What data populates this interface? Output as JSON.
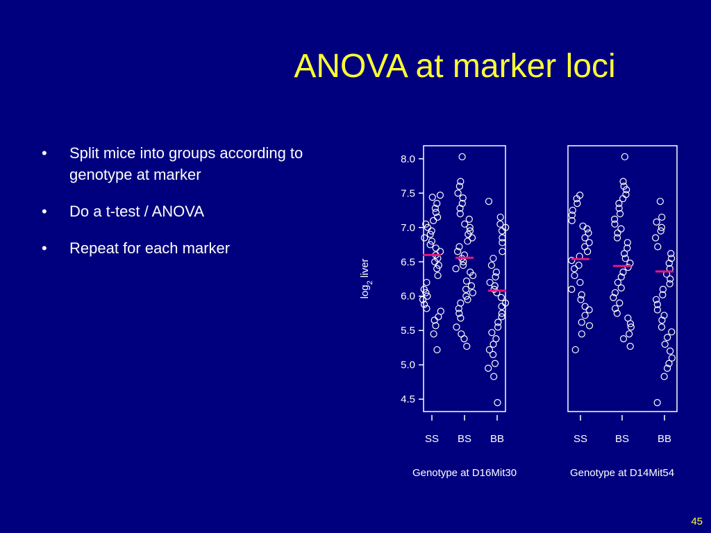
{
  "title": "ANOVA at marker loci",
  "bullets": [
    "Split mice into groups according to genotype at marker",
    "Do a t-test / ANOVA",
    "Repeat for each marker"
  ],
  "page_number": "45",
  "chart_data": [
    {
      "type": "strip",
      "ylabel": [
        "log",
        "2",
        " liver"
      ],
      "xlabel": "Genotype at D16Mit30",
      "categories": [
        "SS",
        "BS",
        "BB"
      ],
      "values": [
        [
          7.47,
          7.44,
          7.35,
          7.28,
          7.22,
          7.15,
          7.1,
          7.05,
          7.0,
          6.95,
          6.9,
          6.85,
          6.8,
          6.75,
          6.7,
          6.65,
          6.6,
          6.55,
          6.5,
          6.45,
          6.4,
          6.3,
          6.2,
          6.1,
          6.05,
          6.0,
          5.95,
          5.88,
          5.82,
          5.78,
          5.7,
          5.65,
          5.57,
          5.45,
          5.22
        ],
        [
          8.03,
          7.67,
          7.6,
          7.5,
          7.43,
          7.35,
          7.28,
          7.2,
          7.12,
          7.05,
          7.0,
          6.95,
          6.9,
          6.85,
          6.8,
          6.72,
          6.65,
          6.6,
          6.55,
          6.5,
          6.45,
          6.4,
          6.35,
          6.3,
          6.22,
          6.15,
          6.1,
          6.05,
          6.0,
          5.95,
          5.9,
          5.82,
          5.75,
          5.68,
          5.55,
          5.45,
          5.38,
          5.27
        ],
        [
          7.38,
          7.15,
          7.05,
          7.0,
          6.95,
          6.85,
          6.78,
          6.65,
          6.55,
          6.45,
          6.35,
          6.28,
          6.2,
          6.15,
          6.1,
          6.05,
          5.98,
          5.9,
          5.85,
          5.75,
          5.7,
          5.62,
          5.55,
          5.47,
          5.38,
          5.3,
          5.22,
          5.15,
          5.02,
          4.95,
          4.83,
          4.45
        ]
      ],
      "means": [
        6.6,
        6.56,
        6.08
      ],
      "point_color": "#ffffff",
      "mean_color": "#e8197a",
      "ylim": [
        4.32,
        8.19
      ],
      "yticks": [
        {
          "value": 4.5,
          "label": "4.5"
        },
        {
          "value": 5,
          "label": "5.0"
        },
        {
          "value": 5.5,
          "label": "5.5"
        },
        {
          "value": 6,
          "label": "6.0"
        },
        {
          "value": 6.5,
          "label": "6.5"
        },
        {
          "value": 7,
          "label": "7.0"
        },
        {
          "value": 7.5,
          "label": "7.5"
        },
        {
          "value": 8,
          "label": "8.0"
        }
      ]
    },
    {
      "type": "strip",
      "xlabel": "Genotype at D14Mit54",
      "categories": [
        "SS",
        "BS",
        "BB"
      ],
      "values": [
        [
          7.47,
          7.42,
          7.35,
          7.25,
          7.18,
          7.1,
          7.02,
          6.98,
          6.92,
          6.85,
          6.78,
          6.72,
          6.65,
          6.58,
          6.52,
          6.45,
          6.4,
          6.3,
          6.2,
          6.1,
          6.02,
          5.95,
          5.85,
          5.8,
          5.72,
          5.62,
          5.57,
          5.45,
          5.22
        ],
        [
          8.03,
          7.67,
          7.6,
          7.55,
          7.48,
          7.42,
          7.35,
          7.28,
          7.2,
          7.12,
          7.05,
          6.98,
          6.92,
          6.85,
          6.78,
          6.7,
          6.62,
          6.55,
          6.48,
          6.42,
          6.35,
          6.28,
          6.2,
          6.12,
          6.05,
          5.98,
          5.9,
          5.82,
          5.75,
          5.68,
          5.6,
          5.55,
          5.45,
          5.38,
          5.27
        ],
        [
          7.38,
          7.15,
          7.08,
          7.0,
          6.95,
          6.85,
          6.72,
          6.62,
          6.55,
          6.48,
          6.4,
          6.32,
          6.25,
          6.18,
          6.1,
          6.02,
          5.95,
          5.88,
          5.8,
          5.72,
          5.65,
          5.55,
          5.48,
          5.4,
          5.3,
          5.2,
          5.1,
          5.02,
          4.95,
          4.83,
          4.45
        ]
      ],
      "means": [
        6.54,
        6.44,
        6.36
      ],
      "point_color": "#ffffff",
      "mean_color": "#e8197a",
      "ylim": [
        4.32,
        8.19
      ]
    }
  ]
}
